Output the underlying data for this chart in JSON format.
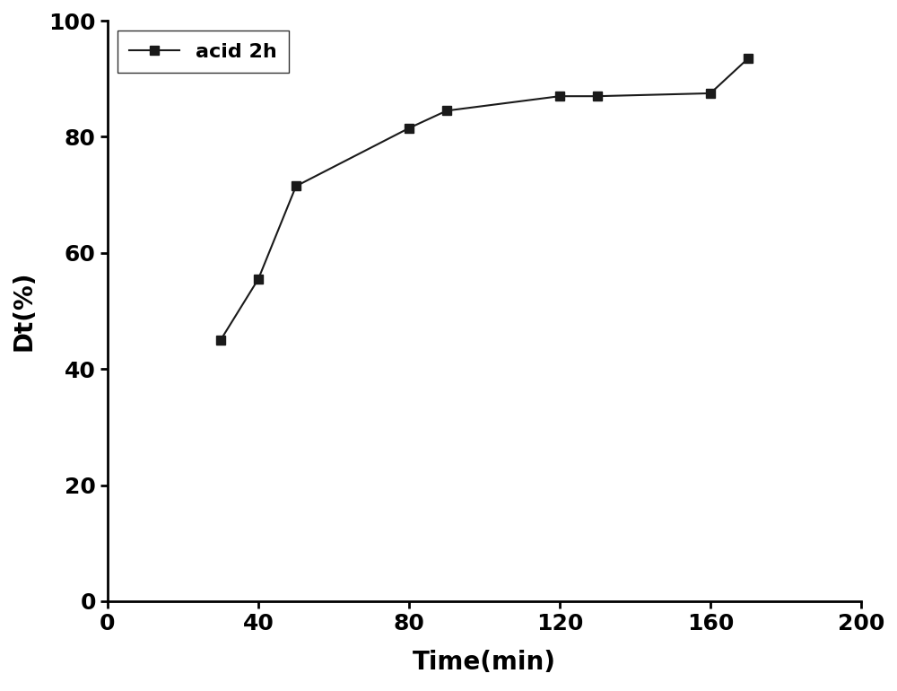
{
  "x": [
    30,
    40,
    50,
    80,
    90,
    120,
    130,
    160,
    170
  ],
  "y": [
    45,
    55.5,
    71.5,
    81.5,
    84.5,
    87,
    87,
    87.5,
    93.5
  ],
  "xlim": [
    0,
    200
  ],
  "ylim": [
    0,
    100
  ],
  "xticks": [
    0,
    40,
    80,
    120,
    160,
    200
  ],
  "yticks": [
    0,
    20,
    40,
    60,
    80,
    100
  ],
  "xlabel": "Time(min)",
  "ylabel": "Dt(%)",
  "legend_label": "acid 2h",
  "line_color": "#1a1a1a",
  "marker": "s",
  "marker_size": 7,
  "line_width": 1.5,
  "axis_fontsize": 20,
  "tick_fontsize": 18,
  "legend_fontsize": 16
}
